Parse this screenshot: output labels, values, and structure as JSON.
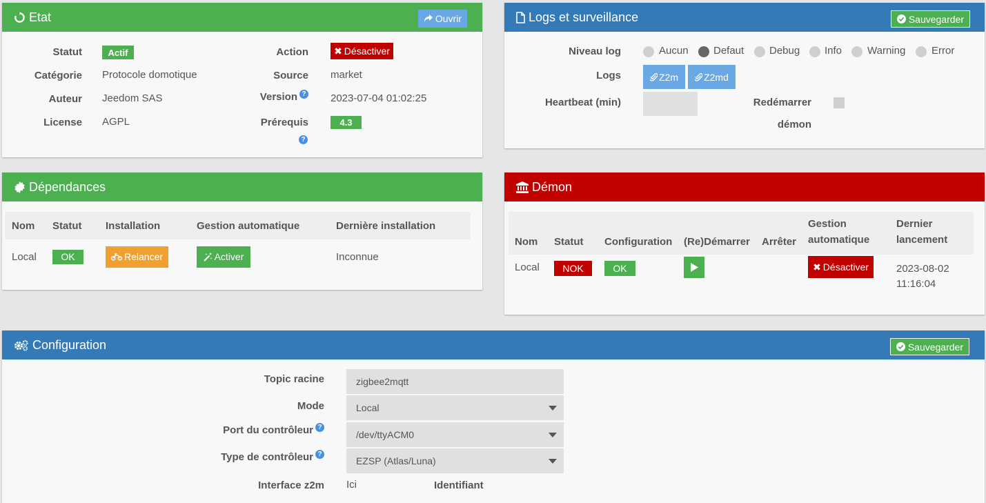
{
  "etat": {
    "title": "Etat",
    "open_button": "Ouvrir",
    "labels": {
      "statut": "Statut",
      "categorie": "Catégorie",
      "auteur": "Auteur",
      "license": "License",
      "action": "Action",
      "source": "Source",
      "version": "Version",
      "prerequis": "Prérequis"
    },
    "values": {
      "statut": "Actif",
      "categorie": "Protocole domotique",
      "auteur": "Jeedom SAS",
      "license": "AGPL",
      "action": "Désactiver",
      "source": "market",
      "version": "2023-07-04 01:02:25",
      "prerequis": "4.3"
    }
  },
  "logs": {
    "title": "Logs et surveillance",
    "save_button": "Sauvegarder",
    "niveau_label": "Niveau log",
    "levels": [
      "Aucun",
      "Defaut",
      "Debug",
      "Info",
      "Warning",
      "Error"
    ],
    "selected_level": "Defaut",
    "logs_label": "Logs",
    "log_buttons": [
      "Z2m",
      "Z2md"
    ],
    "heartbeat_label": "Heartbeat (min)",
    "heartbeat_value": "",
    "restart_label_1": "Redémarrer",
    "restart_label_2": "démon",
    "restart_checked": false
  },
  "dependances": {
    "title": "Dépendances",
    "headers": [
      "Nom",
      "Statut",
      "Installation",
      "Gestion automatique",
      "Dernière installation"
    ],
    "row": {
      "nom": "Local",
      "statut": "OK",
      "installation": "Relancer",
      "gestion": "Activer",
      "derniere": "Inconnue"
    }
  },
  "demon": {
    "title": "Démon",
    "headers": [
      "Nom",
      "Statut",
      "Configuration",
      "(Re)Démarrer",
      "Arrêter",
      "Gestion automatique",
      "Dernier lancement"
    ],
    "row": {
      "nom": "Local",
      "statut": "NOK",
      "configuration": "OK",
      "gestion": "Désactiver",
      "date": "2023-08-02",
      "time": "11:16:04"
    }
  },
  "configuration": {
    "title": "Configuration",
    "save_button": "Sauvegarder",
    "topic_label": "Topic racine",
    "topic_value": "zigbee2mqtt",
    "mode_label": "Mode",
    "mode_value": "Local",
    "port_label": "Port du contrôleur",
    "port_value": "/dev/ttyACM0",
    "type_label": "Type de contrôleur",
    "type_value": "EZSP (Atlas/Luna)",
    "interface_label": "Interface z2m",
    "interface_value": "Ici",
    "identifiant_label": "Identifiant"
  },
  "colors": {
    "green": "#4caf50",
    "blue": "#337ab7",
    "red": "#c10000",
    "orange": "#f0a030",
    "light_blue": "#69a7e5"
  },
  "icons": [
    "refresh-icon",
    "share-icon",
    "times-icon",
    "question-circle-icon",
    "file-icon",
    "check-circle-icon",
    "paperclip-icon",
    "certificate-icon",
    "motorcycle-icon",
    "magic-icon",
    "university-icon",
    "play-icon",
    "cogs-icon"
  ]
}
